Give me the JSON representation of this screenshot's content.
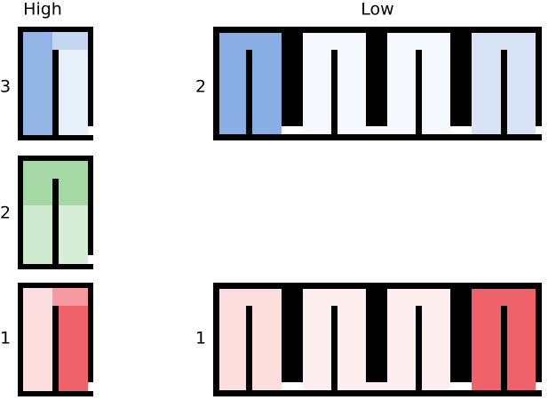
{
  "columns": {
    "high": "High",
    "low": "Low"
  },
  "high_panels": [
    {
      "label": "3"
    },
    {
      "label": "2"
    },
    {
      "label": "1"
    }
  ],
  "low_panels": [
    {
      "label": "2"
    },
    {
      "label": "1"
    }
  ]
}
